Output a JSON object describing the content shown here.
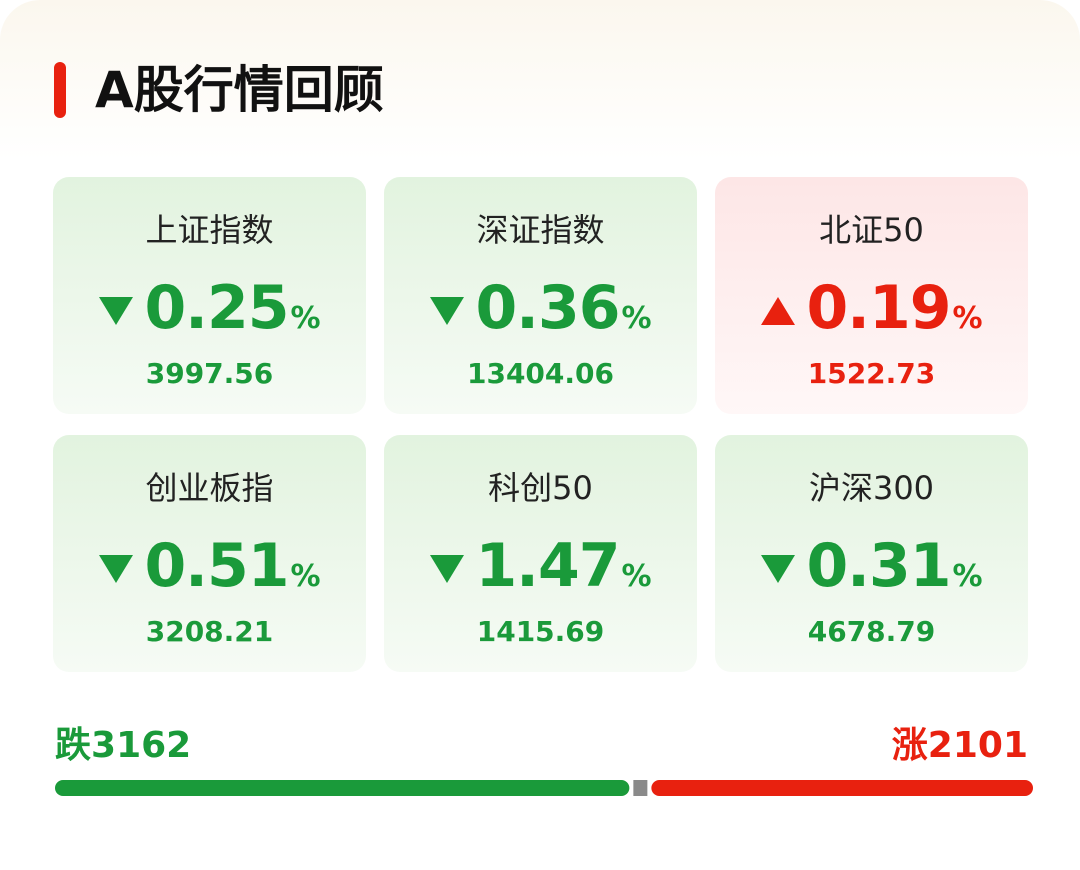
{
  "header": {
    "title": "A股行情回顾"
  },
  "indices": [
    {
      "name": "上证指数",
      "change": "0.25",
      "unit": "%",
      "price": "3997.56",
      "trend": "down",
      "color": "#1a9a3a"
    },
    {
      "name": "深证指数",
      "change": "0.36",
      "unit": "%",
      "price": "13404.06",
      "trend": "down",
      "color": "#1a9a3a"
    },
    {
      "name": "北证50",
      "change": "0.19",
      "unit": "%",
      "price": "1522.73",
      "trend": "up",
      "color": "#e8210f"
    },
    {
      "name": "创业板指",
      "change": "0.51",
      "unit": "%",
      "price": "3208.21",
      "trend": "down",
      "color": "#1a9a3a"
    },
    {
      "name": "科创50",
      "change": "1.47",
      "unit": "%",
      "price": "1415.69",
      "trend": "down",
      "color": "#1a9a3a"
    },
    {
      "name": "沪深300",
      "change": "0.31",
      "unit": "%",
      "price": "4678.79",
      "trend": "down",
      "color": "#1a9a3a"
    }
  ],
  "breadth": {
    "fall": {
      "label": "跌",
      "value": 3162,
      "color": "#1a9a3a"
    },
    "rise": {
      "label": "涨",
      "value": 2101,
      "color": "#e8210f"
    }
  }
}
